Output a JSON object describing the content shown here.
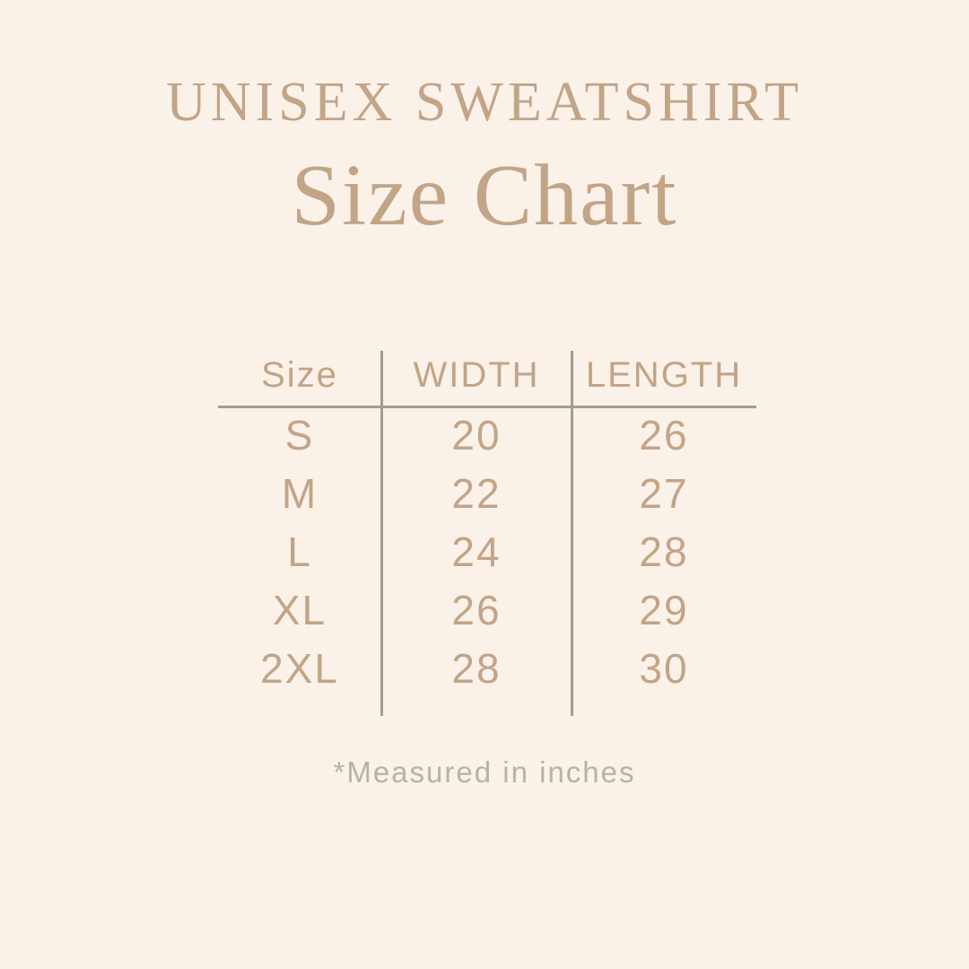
{
  "page": {
    "background_color": "#FAF1E8",
    "accent_color": "#C2A487",
    "line_color": "#A89B8D",
    "muted_color": "#BCB0A2"
  },
  "header": {
    "title": "UNISEX SWEATSHIRT",
    "subtitle": "Size Chart"
  },
  "chart_data": {
    "type": "table",
    "title": "UNISEX SWEATSHIRT Size Chart",
    "columns": [
      "Size",
      "WIDTH",
      "LENGTH"
    ],
    "rows": [
      [
        "S",
        20,
        26
      ],
      [
        "M",
        22,
        27
      ],
      [
        "L",
        24,
        28
      ],
      [
        "XL",
        26,
        29
      ],
      [
        "2XL",
        28,
        30
      ]
    ],
    "units": "inches",
    "note": "*Measured in inches"
  },
  "table": {
    "col_size": "Size",
    "col_width": "WIDTH",
    "col_length": "LENGTH",
    "rows": [
      {
        "size": "S",
        "width": "20",
        "length": "26"
      },
      {
        "size": "M",
        "width": "22",
        "length": "27"
      },
      {
        "size": "L",
        "width": "24",
        "length": "28"
      },
      {
        "size": "XL",
        "width": "26",
        "length": "29"
      },
      {
        "size": "2XL",
        "width": "28",
        "length": "30"
      }
    ]
  },
  "footer": {
    "note": "*Measured in inches"
  }
}
